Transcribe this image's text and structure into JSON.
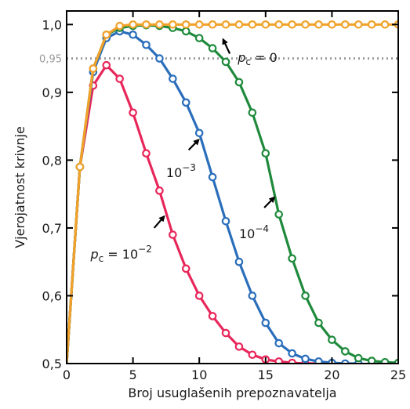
{
  "chart_data": {
    "type": "line",
    "xlabel": "Broj usuglašenih prepoznavatelja",
    "ylabel": "Vjerojatnost krivnje",
    "xlim": [
      0,
      25
    ],
    "ylim": [
      0.5,
      1.02
    ],
    "xticks": [
      0,
      5,
      10,
      15,
      20,
      25
    ],
    "xtick_labels": [
      "0",
      "5",
      "10",
      "15",
      "20",
      "25"
    ],
    "yticks": [
      0.5,
      0.6,
      0.7,
      0.8,
      0.9,
      1.0
    ],
    "ytick_labels": [
      "0,5",
      "0,6",
      "0,7",
      "0,8",
      "0,9",
      "1,0"
    ],
    "grid": false,
    "reference_line": {
      "y": 0.95,
      "label": "0,95",
      "style": "dotted",
      "color": "#9a9a9a"
    },
    "series": [
      {
        "key": "p1e-2",
        "color": "#e8265a",
        "x": [
          0,
          1,
          2,
          3,
          4,
          5,
          6,
          7,
          8,
          9,
          10,
          11,
          12,
          13,
          14,
          15,
          16,
          17,
          18,
          19,
          20
        ],
        "y": [
          0.5,
          0.79,
          0.91,
          0.94,
          0.92,
          0.87,
          0.81,
          0.755,
          0.69,
          0.64,
          0.6,
          0.57,
          0.545,
          0.525,
          0.513,
          0.506,
          0.503,
          0.501,
          0.5,
          0.5,
          0.5
        ]
      },
      {
        "key": "p1e-3",
        "color": "#2a6ebb",
        "x": [
          0,
          1,
          2,
          3,
          4,
          5,
          6,
          7,
          8,
          9,
          10,
          11,
          12,
          13,
          14,
          15,
          16,
          17,
          18,
          19,
          20,
          21,
          22
        ],
        "y": [
          0.5,
          0.79,
          0.93,
          0.98,
          0.99,
          0.985,
          0.97,
          0.95,
          0.92,
          0.885,
          0.84,
          0.775,
          0.71,
          0.65,
          0.6,
          0.56,
          0.53,
          0.515,
          0.507,
          0.503,
          0.501,
          0.5,
          0.5
        ]
      },
      {
        "key": "p1e-4",
        "color": "#1f8a3c",
        "x": [
          0,
          1,
          2,
          3,
          4,
          5,
          6,
          7,
          8,
          9,
          10,
          11,
          12,
          13,
          14,
          15,
          16,
          17,
          18,
          19,
          20,
          21,
          22,
          23,
          24,
          25
        ],
        "y": [
          0.5,
          0.79,
          0.935,
          0.985,
          0.995,
          0.998,
          0.999,
          0.998,
          0.995,
          0.99,
          0.98,
          0.965,
          0.945,
          0.915,
          0.87,
          0.81,
          0.72,
          0.655,
          0.6,
          0.56,
          0.535,
          0.518,
          0.508,
          0.504,
          0.502,
          0.501
        ]
      },
      {
        "key": "p0",
        "color": "#f2a22a",
        "x": [
          0,
          1,
          2,
          3,
          4,
          5,
          6,
          7,
          8,
          9,
          10,
          11,
          12,
          13,
          14,
          15,
          16,
          17,
          18,
          19,
          20,
          21,
          22,
          23,
          24,
          25
        ],
        "y": [
          0.5,
          0.79,
          0.935,
          0.985,
          0.998,
          1.0,
          1.0,
          1.0,
          1.0,
          1.0,
          1.0,
          1.0,
          1.0,
          1.0,
          1.0,
          1.0,
          1.0,
          1.0,
          1.0,
          1.0,
          1.0,
          1.0,
          1.0,
          1.0,
          1.0,
          1.0
        ]
      }
    ],
    "annotations": [
      {
        "key": "a-p0",
        "parts": [
          "p",
          "c",
          " = 0"
        ],
        "text_x": 12.9,
        "text_y": 0.945,
        "arrow_from": [
          12.3,
          0.957
        ],
        "arrow_to": [
          11.8,
          0.978
        ]
      },
      {
        "key": "a-1e-3",
        "parts": [
          "",
          "",
          "10",
          "−3"
        ],
        "text_x": 7.5,
        "text_y": 0.775,
        "arrow_from": [
          9.2,
          0.815
        ],
        "arrow_to": [
          9.95,
          0.83
        ]
      },
      {
        "key": "a-1e-4",
        "parts": [
          "",
          "",
          "10",
          "−4"
        ],
        "text_x": 13.0,
        "text_y": 0.685,
        "arrow_from": [
          14.9,
          0.73
        ],
        "arrow_to": [
          15.65,
          0.745
        ]
      },
      {
        "key": "a-1e-2",
        "parts": [
          "p",
          "c",
          " = 10",
          "−2"
        ],
        "text_x": 1.8,
        "text_y": 0.655,
        "arrow_from": [
          6.6,
          0.7
        ],
        "arrow_to": [
          7.35,
          0.717
        ]
      }
    ]
  }
}
